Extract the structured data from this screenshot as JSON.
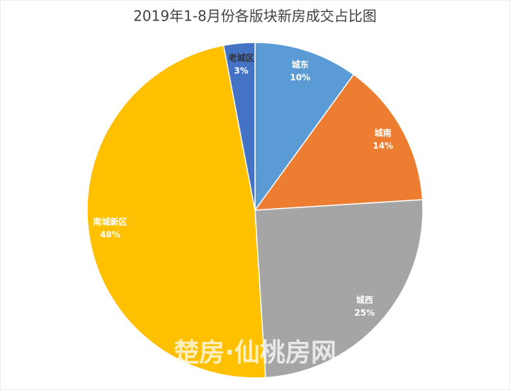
{
  "chart_data": {
    "type": "pie",
    "title": "2019年1-8月份各版块新房成交占比图",
    "categories": [
      "城东",
      "城南",
      "城西",
      "南城新区",
      "老城区"
    ],
    "values": [
      10,
      14,
      25,
      48,
      3
    ],
    "value_labels": [
      "10%",
      "14%",
      "25%",
      "48%",
      "3%"
    ],
    "colors": [
      "#5b9bd5",
      "#ed7d31",
      "#a5a5a5",
      "#ffc000",
      "#4472c4"
    ]
  },
  "watermark": "楚房·仙桃房网"
}
